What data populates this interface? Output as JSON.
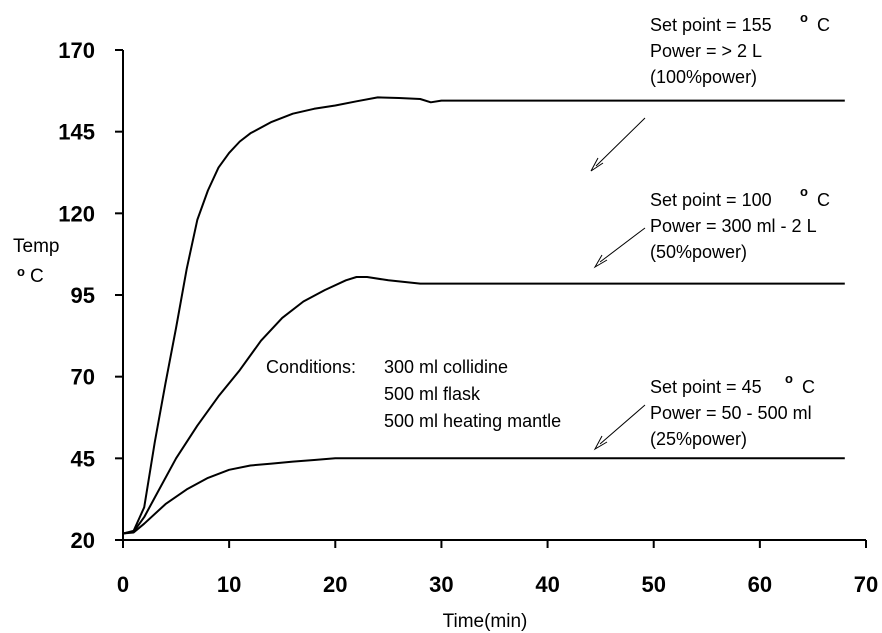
{
  "chart_data": {
    "type": "line",
    "xlabel": "Time(min)",
    "ylabel_line1": "Temp",
    "ylabel_deg": "o",
    "ylabel_unit": "C",
    "xlim": [
      0,
      70
    ],
    "ylim": [
      20,
      170
    ],
    "x_ticks": [
      0,
      10,
      20,
      30,
      40,
      50,
      60,
      70
    ],
    "y_ticks": [
      20,
      45,
      70,
      95,
      120,
      145,
      170
    ],
    "grid": false,
    "series": [
      {
        "points": [
          [
            0,
            22
          ],
          [
            1,
            22.8
          ],
          [
            2,
            30
          ],
          [
            3,
            50
          ],
          [
            4,
            68
          ],
          [
            5,
            85
          ],
          [
            6,
            103
          ],
          [
            7,
            118
          ],
          [
            8,
            127
          ],
          [
            9,
            134
          ],
          [
            10,
            138.5
          ],
          [
            11,
            142
          ],
          [
            12,
            144.5
          ],
          [
            14,
            148
          ],
          [
            16,
            150.5
          ],
          [
            18,
            152
          ],
          [
            20,
            153
          ],
          [
            22,
            154.3
          ],
          [
            24,
            155.5
          ],
          [
            26,
            155.3
          ],
          [
            28,
            155
          ],
          [
            29,
            154
          ],
          [
            30,
            154.5
          ],
          [
            40,
            154.5
          ],
          [
            50,
            154.5
          ],
          [
            60,
            154.5
          ],
          [
            68,
            154.5
          ]
        ]
      },
      {
        "points": [
          [
            0,
            22
          ],
          [
            1,
            22.5
          ],
          [
            2,
            27
          ],
          [
            3,
            33
          ],
          [
            5,
            45
          ],
          [
            7,
            55
          ],
          [
            9,
            64
          ],
          [
            11,
            72
          ],
          [
            13,
            81
          ],
          [
            15,
            88
          ],
          [
            17,
            93
          ],
          [
            19,
            96.5
          ],
          [
            21,
            99.5
          ],
          [
            22,
            100.5
          ],
          [
            23,
            100.5
          ],
          [
            25,
            99.5
          ],
          [
            28,
            98.5
          ],
          [
            30,
            98.5
          ],
          [
            40,
            98.5
          ],
          [
            50,
            98.5
          ],
          [
            60,
            98.5
          ],
          [
            68,
            98.5
          ]
        ]
      },
      {
        "points": [
          [
            0,
            22
          ],
          [
            1,
            22.3
          ],
          [
            2,
            25
          ],
          [
            4,
            31
          ],
          [
            6,
            35.5
          ],
          [
            8,
            39
          ],
          [
            10,
            41.5
          ],
          [
            12,
            42.8
          ],
          [
            14,
            43.4
          ],
          [
            16,
            44
          ],
          [
            18,
            44.5
          ],
          [
            20,
            45
          ],
          [
            22,
            45
          ],
          [
            30,
            45
          ],
          [
            40,
            45
          ],
          [
            50,
            45
          ],
          [
            60,
            45
          ],
          [
            68,
            45
          ]
        ]
      }
    ],
    "annotations": [
      {
        "lines": [
          "Set point = 155",
          "Power = > 2 L",
          "(100%power)"
        ],
        "sup": "o",
        "sup_suffix": "C"
      },
      {
        "lines": [
          "Set point = 100",
          "Power = 300 ml - 2 L",
          "(50%power)"
        ],
        "sup": "o",
        "sup_suffix": "C"
      },
      {
        "lines": [
          "Set point = 45",
          "Power = 50 - 500 ml",
          "(25%power)"
        ],
        "sup": "o",
        "sup_suffix": "C"
      }
    ],
    "conditions": {
      "label": "Conditions:",
      "items": [
        "300 ml collidine",
        "500 ml  flask",
        "500 ml heating mantle"
      ]
    }
  }
}
